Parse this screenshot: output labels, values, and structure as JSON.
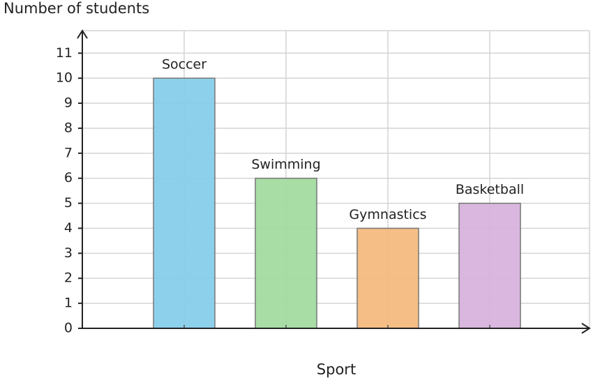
{
  "chart_data": {
    "type": "bar",
    "x_label": "Sport",
    "y_label": "Number of students",
    "categories": [
      "Soccer",
      "Swimming",
      "Gymnastics",
      "Basketball"
    ],
    "values": [
      10,
      6,
      4,
      5
    ],
    "colors": [
      "#87ceeb",
      "#a3dba0",
      "#f3bb80",
      "#d7b3dc"
    ],
    "ylim": [
      0,
      11.9
    ],
    "yticks": [
      0,
      1,
      2,
      3,
      4,
      5,
      6,
      7,
      8,
      9,
      10,
      11
    ],
    "grid": true
  }
}
